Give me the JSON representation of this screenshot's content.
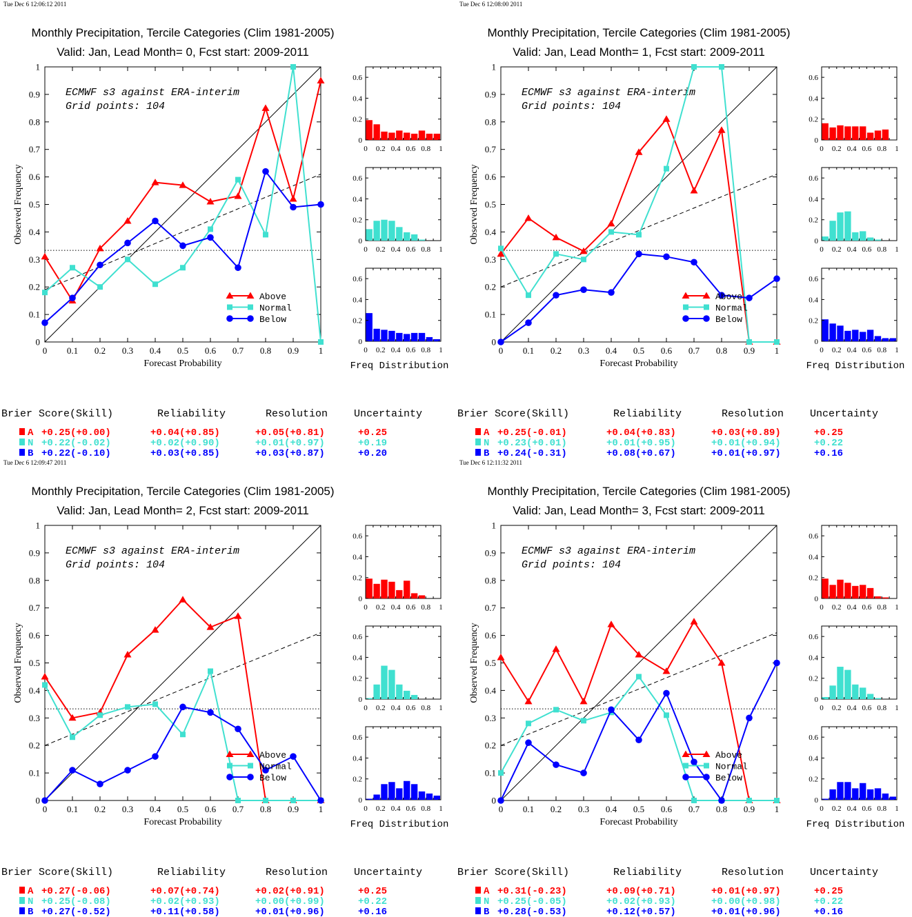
{
  "panels": [
    {
      "timestamp": "Tue Dec  6 12:06:12 2011",
      "title_line1": "Monthly Precipitation, Tercile Categories (Clim 1981-2005)",
      "title_line2": "Valid: Jan, Lead Month= 0, Fcst start: 2009-2011",
      "annotation_line1": "ECMWF s3 against ERA-interim",
      "annotation_line2": "Grid points:  104"
    },
    {
      "timestamp": "Tue Dec  6 12:08:00 2011",
      "title_line1": "Monthly Precipitation, Tercile Categories (Clim 1981-2005)",
      "title_line2": "Valid: Jan, Lead Month= 1, Fcst start: 2009-2011",
      "annotation_line1": "ECMWF s3 against ERA-interim",
      "annotation_line2": "Grid points:  104"
    },
    {
      "timestamp": "Tue Dec  6 12:09:47 2011",
      "title_line1": "Monthly Precipitation, Tercile Categories (Clim 1981-2005)",
      "title_line2": "Valid: Jan, Lead Month= 2, Fcst start: 2009-2011",
      "annotation_line1": "ECMWF s3 against ERA-interim",
      "annotation_line2": "Grid points:  104"
    },
    {
      "timestamp": "Tue Dec  6 12:11:32 2011",
      "title_line1": "Monthly Precipitation, Tercile Categories (Clim 1981-2005)",
      "title_line2": "Valid: Jan, Lead Month= 3, Fcst start: 2009-2011",
      "annotation_line1": "ECMWF s3 against ERA-interim",
      "annotation_line2": "Grid points:  104"
    }
  ],
  "labels": {
    "xlabel": "Forecast Probability",
    "ylabel": "Observed Frequency",
    "freq_label": "Freq Distribution",
    "legend": [
      "Above",
      "Normal",
      "Below"
    ],
    "score_headers": [
      "Brier Score(Skill)",
      "Reliability",
      "Resolution",
      "Uncertainty"
    ]
  },
  "colors": {
    "above": "#ff0000",
    "normal": "#40e0d0",
    "below": "#0000ff"
  },
  "chart_data": [
    {
      "type": "line",
      "x": [
        0,
        0.1,
        0.2,
        0.3,
        0.4,
        0.5,
        0.6,
        0.7,
        0.8,
        0.9,
        1
      ],
      "xlim": [
        0,
        1
      ],
      "ylim": [
        0,
        1
      ],
      "reference_lines": {
        "diagonal": true,
        "climatology": 0.333,
        "skill_line": [
          [
            0,
            0.19
          ],
          [
            1,
            0.61
          ]
        ]
      },
      "series": [
        {
          "name": "Above",
          "values": [
            0.31,
            0.15,
            0.34,
            0.44,
            0.58,
            0.57,
            0.51,
            0.53,
            0.85,
            0.52,
            0.95
          ]
        },
        {
          "name": "Normal",
          "values": [
            0.18,
            0.27,
            0.2,
            0.3,
            0.21,
            0.27,
            0.41,
            0.59,
            0.39,
            1.0,
            0.0
          ]
        },
        {
          "name": "Below",
          "values": [
            0.07,
            0.16,
            0.28,
            0.36,
            0.44,
            0.35,
            0.38,
            0.27,
            0.62,
            0.49,
            0.5
          ]
        }
      ],
      "freq_distribution": {
        "ylim": [
          0,
          0.7
        ],
        "above": [
          0.19,
          0.15,
          0.08,
          0.07,
          0.09,
          0.07,
          0.06,
          0.09,
          0.06,
          0.06
        ],
        "normal": [
          0.11,
          0.19,
          0.2,
          0.19,
          0.13,
          0.08,
          0.06,
          0.01,
          0.0,
          0.0
        ],
        "below": [
          0.27,
          0.12,
          0.11,
          0.1,
          0.08,
          0.07,
          0.08,
          0.08,
          0.04,
          0.02
        ]
      },
      "scores": {
        "above": {
          "letter": "A",
          "brier": "+0.25(+0.00)",
          "reliability": "+0.04(+0.85)",
          "resolution": "+0.05(+0.81)",
          "uncertainty": "+0.25"
        },
        "normal": {
          "letter": "N",
          "brier": "+0.22(-0.02)",
          "reliability": "+0.02(+0.90)",
          "resolution": "+0.01(+0.97)",
          "uncertainty": "+0.19"
        },
        "below": {
          "letter": "B",
          "brier": "+0.22(-0.10)",
          "reliability": "+0.03(+0.85)",
          "resolution": "+0.03(+0.87)",
          "uncertainty": "+0.20"
        }
      }
    },
    {
      "type": "line",
      "x": [
        0,
        0.1,
        0.2,
        0.3,
        0.4,
        0.5,
        0.6,
        0.7,
        0.8,
        0.9,
        1
      ],
      "xlim": [
        0,
        1
      ],
      "ylim": [
        0,
        1
      ],
      "reference_lines": {
        "diagonal": true,
        "climatology": 0.333,
        "skill_line": [
          [
            0,
            0.2
          ],
          [
            1,
            0.61
          ]
        ]
      },
      "series": [
        {
          "name": "Above",
          "values": [
            0.32,
            0.45,
            0.38,
            0.33,
            0.43,
            0.69,
            0.81,
            0.55,
            0.77,
            0.0,
            0.0
          ]
        },
        {
          "name": "Normal",
          "values": [
            0.34,
            0.17,
            0.32,
            0.3,
            0.4,
            0.39,
            0.63,
            1.0,
            1.0,
            0.0,
            0.0
          ]
        },
        {
          "name": "Below",
          "values": [
            0.0,
            0.07,
            0.17,
            0.19,
            0.18,
            0.32,
            0.31,
            0.29,
            0.17,
            0.16,
            0.23
          ]
        }
      ],
      "freq_distribution": {
        "ylim": [
          0,
          0.7
        ],
        "above": [
          0.16,
          0.12,
          0.14,
          0.13,
          0.13,
          0.13,
          0.07,
          0.09,
          0.1,
          0.0
        ],
        "normal": [
          0.04,
          0.19,
          0.27,
          0.28,
          0.08,
          0.09,
          0.03,
          0.01,
          0.0,
          0.0
        ],
        "below": [
          0.21,
          0.17,
          0.15,
          0.1,
          0.11,
          0.09,
          0.11,
          0.05,
          0.03,
          0.03
        ]
      },
      "scores": {
        "above": {
          "letter": "A",
          "brier": "+0.25(-0.01)",
          "reliability": "+0.04(+0.83)",
          "resolution": "+0.03(+0.89)",
          "uncertainty": "+0.25"
        },
        "normal": {
          "letter": "N",
          "brier": "+0.23(+0.01)",
          "reliability": "+0.01(+0.95)",
          "resolution": "+0.01(+0.94)",
          "uncertainty": "+0.22"
        },
        "below": {
          "letter": "B",
          "brier": "+0.24(-0.31)",
          "reliability": "+0.08(+0.67)",
          "resolution": "+0.01(+0.97)",
          "uncertainty": "+0.16"
        }
      }
    },
    {
      "type": "line",
      "x": [
        0,
        0.1,
        0.2,
        0.3,
        0.4,
        0.5,
        0.6,
        0.7,
        0.8,
        0.9,
        1
      ],
      "xlim": [
        0,
        1
      ],
      "ylim": [
        0,
        1
      ],
      "reference_lines": {
        "diagonal": true,
        "climatology": 0.333,
        "skill_line": [
          [
            0,
            0.2
          ],
          [
            1,
            0.61
          ]
        ]
      },
      "series": [
        {
          "name": "Above",
          "values": [
            0.45,
            0.3,
            0.32,
            0.53,
            0.62,
            0.73,
            0.63,
            0.67,
            0.0,
            0.0,
            0.0
          ]
        },
        {
          "name": "Normal",
          "values": [
            0.42,
            0.23,
            0.31,
            0.34,
            0.35,
            0.24,
            0.47,
            0.0,
            0.0,
            0.0,
            0.0
          ]
        },
        {
          "name": "Below",
          "values": [
            0.0,
            0.11,
            0.06,
            0.11,
            0.16,
            0.34,
            0.32,
            0.26,
            0.11,
            0.16,
            0.0
          ]
        }
      ],
      "freq_distribution": {
        "ylim": [
          0,
          0.7
        ],
        "above": [
          0.19,
          0.14,
          0.18,
          0.16,
          0.08,
          0.17,
          0.05,
          0.03,
          0.0,
          0.0
        ],
        "normal": [
          0.01,
          0.14,
          0.32,
          0.28,
          0.14,
          0.08,
          0.04,
          0.0,
          0.0,
          0.0
        ],
        "below": [
          0.01,
          0.05,
          0.15,
          0.17,
          0.11,
          0.18,
          0.15,
          0.08,
          0.06,
          0.04
        ]
      },
      "scores": {
        "above": {
          "letter": "A",
          "brier": "+0.27(-0.06)",
          "reliability": "+0.07(+0.74)",
          "resolution": "+0.02(+0.91)",
          "uncertainty": "+0.25"
        },
        "normal": {
          "letter": "N",
          "brier": "+0.25(-0.08)",
          "reliability": "+0.02(+0.93)",
          "resolution": "+0.00(+0.99)",
          "uncertainty": "+0.22"
        },
        "below": {
          "letter": "B",
          "brier": "+0.27(-0.52)",
          "reliability": "+0.11(+0.58)",
          "resolution": "+0.01(+0.96)",
          "uncertainty": "+0.16"
        }
      }
    },
    {
      "type": "line",
      "x": [
        0,
        0.1,
        0.2,
        0.3,
        0.4,
        0.5,
        0.6,
        0.7,
        0.8,
        0.9,
        1
      ],
      "xlim": [
        0,
        1
      ],
      "ylim": [
        0,
        1
      ],
      "reference_lines": {
        "diagonal": true,
        "climatology": 0.333,
        "skill_line": [
          [
            0,
            0.2
          ],
          [
            1,
            0.61
          ]
        ]
      },
      "series": [
        {
          "name": "Above",
          "values": [
            0.52,
            0.36,
            0.55,
            0.36,
            0.64,
            0.53,
            0.47,
            0.65,
            0.5,
            0.0,
            0.0
          ]
        },
        {
          "name": "Normal",
          "values": [
            0.1,
            0.28,
            0.33,
            0.29,
            0.32,
            0.45,
            0.31,
            0.0,
            0.0,
            0.0,
            0.0
          ]
        },
        {
          "name": "Below",
          "values": [
            0.0,
            0.21,
            0.13,
            0.1,
            0.33,
            0.22,
            0.39,
            0.14,
            0.0,
            0.3,
            0.5
          ]
        }
      ],
      "freq_distribution": {
        "ylim": [
          0,
          0.7
        ],
        "above": [
          0.19,
          0.13,
          0.18,
          0.15,
          0.12,
          0.13,
          0.1,
          0.02,
          0.01,
          0.0
        ],
        "normal": [
          0.02,
          0.13,
          0.31,
          0.28,
          0.14,
          0.11,
          0.05,
          0.01,
          0.0,
          0.0
        ],
        "below": [
          0.01,
          0.1,
          0.17,
          0.17,
          0.11,
          0.16,
          0.1,
          0.11,
          0.06,
          0.03
        ]
      },
      "scores": {
        "above": {
          "letter": "A",
          "brier": "+0.31(-0.23)",
          "reliability": "+0.09(+0.71)",
          "resolution": "+0.01(+0.97)",
          "uncertainty": "+0.25"
        },
        "normal": {
          "letter": "N",
          "brier": "+0.25(-0.05)",
          "reliability": "+0.02(+0.93)",
          "resolution": "+0.00(+0.98)",
          "uncertainty": "+0.22"
        },
        "below": {
          "letter": "B",
          "brier": "+0.28(-0.53)",
          "reliability": "+0.12(+0.57)",
          "resolution": "+0.01(+0.96)",
          "uncertainty": "+0.16"
        }
      }
    }
  ]
}
